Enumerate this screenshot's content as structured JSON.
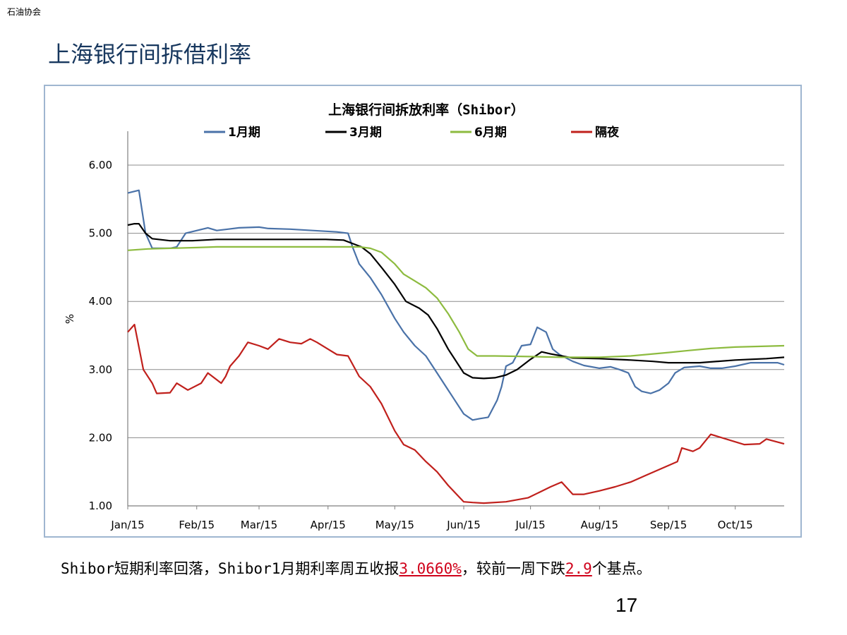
{
  "header": {
    "org": "石油协会",
    "title": "上海银行间拆借利率"
  },
  "caption": {
    "text1": "Shibor短期利率回落，Shibor1月期利率周五收报",
    "value1": "3.0660%",
    "text2": "，较前一周下跌",
    "value2": "2.9",
    "text3": "个基点。"
  },
  "page_number": "17",
  "chart_data": {
    "type": "line",
    "title": "上海银行间拆放利率（Shibor）",
    "ylabel": "%",
    "xlabel": "",
    "ylim": [
      1.0,
      6.0
    ],
    "yticks": [
      "1.00",
      "2.00",
      "3.00",
      "4.00",
      "5.00",
      "6.00"
    ],
    "xticks": [
      "Jan/15",
      "Feb/15",
      "Mar/15",
      "Apr/15",
      "May/15",
      "Jun/15",
      "Jul/15",
      "Aug/15",
      "Sep/15",
      "Oct/15"
    ],
    "grid": true,
    "legend": "top",
    "series": [
      {
        "name": "1月期",
        "color": "#4a72a8",
        "x": [
          "2015-01-01",
          "2015-01-06",
          "2015-01-09",
          "2015-01-12",
          "2015-01-20",
          "2015-01-23",
          "2015-01-27",
          "2015-02-06",
          "2015-02-10",
          "2015-02-15",
          "2015-02-20",
          "2015-03-01",
          "2015-03-05",
          "2015-03-15",
          "2015-03-25",
          "2015-04-05",
          "2015-04-10",
          "2015-04-12",
          "2015-04-15",
          "2015-04-20",
          "2015-04-25",
          "2015-05-01",
          "2015-05-05",
          "2015-05-10",
          "2015-05-15",
          "2015-05-20",
          "2015-05-24",
          "2015-05-28",
          "2015-06-01",
          "2015-06-05",
          "2015-06-08",
          "2015-06-12",
          "2015-06-16",
          "2015-06-18",
          "2015-06-20",
          "2015-06-23",
          "2015-06-27",
          "2015-07-01",
          "2015-07-04",
          "2015-07-08",
          "2015-07-11",
          "2015-07-14",
          "2015-07-20",
          "2015-07-25",
          "2015-08-01",
          "2015-08-06",
          "2015-08-10",
          "2015-08-14",
          "2015-08-17",
          "2015-08-20",
          "2015-08-24",
          "2015-08-28",
          "2015-09-01",
          "2015-09-04",
          "2015-09-08",
          "2015-09-15",
          "2015-09-20",
          "2015-09-25",
          "2015-10-01",
          "2015-10-08",
          "2015-10-15",
          "2015-10-20",
          "2015-10-23"
        ],
        "y": [
          5.59,
          5.63,
          5.0,
          4.78,
          4.78,
          4.8,
          5.0,
          5.08,
          5.04,
          5.06,
          5.08,
          5.09,
          5.07,
          5.06,
          5.04,
          5.02,
          5.0,
          4.8,
          4.55,
          4.35,
          4.1,
          3.75,
          3.55,
          3.35,
          3.2,
          2.95,
          2.75,
          2.55,
          2.35,
          2.26,
          2.28,
          2.3,
          2.55,
          2.75,
          3.05,
          3.1,
          3.35,
          3.37,
          3.62,
          3.55,
          3.3,
          3.22,
          3.12,
          3.06,
          3.02,
          3.04,
          3.0,
          2.95,
          2.75,
          2.68,
          2.65,
          2.7,
          2.8,
          2.95,
          3.03,
          3.05,
          3.02,
          3.02,
          3.05,
          3.1,
          3.1,
          3.1,
          3.07
        ]
      },
      {
        "name": "3月期",
        "color": "#000000",
        "x": [
          "2015-01-01",
          "2015-01-04",
          "2015-01-06",
          "2015-01-09",
          "2015-01-12",
          "2015-01-20",
          "2015-01-30",
          "2015-02-10",
          "2015-02-20",
          "2015-03-01",
          "2015-03-15",
          "2015-03-31",
          "2015-04-08",
          "2015-04-12",
          "2015-04-16",
          "2015-04-20",
          "2015-04-25",
          "2015-05-01",
          "2015-05-06",
          "2015-05-12",
          "2015-05-16",
          "2015-05-20",
          "2015-05-25",
          "2015-06-01",
          "2015-06-05",
          "2015-06-10",
          "2015-06-15",
          "2015-06-20",
          "2015-06-25",
          "2015-07-01",
          "2015-07-06",
          "2015-07-10",
          "2015-07-15",
          "2015-07-20",
          "2015-08-01",
          "2015-08-15",
          "2015-08-25",
          "2015-09-01",
          "2015-09-15",
          "2015-10-01",
          "2015-10-15",
          "2015-10-23"
        ],
        "y": [
          5.12,
          5.14,
          5.14,
          5.0,
          4.92,
          4.89,
          4.89,
          4.91,
          4.91,
          4.91,
          4.91,
          4.91,
          4.9,
          4.85,
          4.8,
          4.7,
          4.5,
          4.25,
          4.0,
          3.9,
          3.8,
          3.6,
          3.3,
          2.95,
          2.88,
          2.87,
          2.88,
          2.92,
          3.0,
          3.15,
          3.26,
          3.23,
          3.2,
          3.17,
          3.16,
          3.14,
          3.12,
          3.1,
          3.1,
          3.14,
          3.16,
          3.18
        ]
      },
      {
        "name": "6月期",
        "color": "#8dbb3f",
        "x": [
          "2015-01-01",
          "2015-01-10",
          "2015-01-20",
          "2015-02-01",
          "2015-02-10",
          "2015-03-01",
          "2015-03-31",
          "2015-04-15",
          "2015-04-20",
          "2015-04-25",
          "2015-05-01",
          "2015-05-05",
          "2015-05-10",
          "2015-05-15",
          "2015-05-20",
          "2015-05-25",
          "2015-05-30",
          "2015-06-03",
          "2015-06-07",
          "2015-06-15",
          "2015-07-01",
          "2015-07-15",
          "2015-08-01",
          "2015-08-15",
          "2015-09-01",
          "2015-09-10",
          "2015-09-20",
          "2015-10-01",
          "2015-10-23"
        ],
        "y": [
          4.75,
          4.77,
          4.78,
          4.79,
          4.8,
          4.8,
          4.8,
          4.8,
          4.78,
          4.72,
          4.55,
          4.4,
          4.3,
          4.2,
          4.05,
          3.82,
          3.55,
          3.3,
          3.2,
          3.2,
          3.19,
          3.18,
          3.18,
          3.2,
          3.25,
          3.28,
          3.31,
          3.33,
          3.35
        ]
      },
      {
        "name": "隔夜",
        "color": "#c0201c",
        "x": [
          "2015-01-01",
          "2015-01-04",
          "2015-01-08",
          "2015-01-12",
          "2015-01-14",
          "2015-01-20",
          "2015-01-23",
          "2015-01-28",
          "2015-02-03",
          "2015-02-06",
          "2015-02-10",
          "2015-02-12",
          "2015-02-14",
          "2015-02-16",
          "2015-02-20",
          "2015-02-24",
          "2015-03-01",
          "2015-03-05",
          "2015-03-10",
          "2015-03-15",
          "2015-03-20",
          "2015-03-24",
          "2015-03-27",
          "2015-04-01",
          "2015-04-05",
          "2015-04-10",
          "2015-04-15",
          "2015-04-20",
          "2015-04-25",
          "2015-05-01",
          "2015-05-05",
          "2015-05-10",
          "2015-05-15",
          "2015-05-20",
          "2015-05-25",
          "2015-06-01",
          "2015-06-05",
          "2015-06-10",
          "2015-06-20",
          "2015-06-30",
          "2015-07-05",
          "2015-07-10",
          "2015-07-15",
          "2015-07-20",
          "2015-07-25",
          "2015-08-01",
          "2015-08-08",
          "2015-08-15",
          "2015-08-22",
          "2015-08-29",
          "2015-09-05",
          "2015-09-07",
          "2015-09-12",
          "2015-09-15",
          "2015-09-20",
          "2015-10-05",
          "2015-10-12",
          "2015-10-15",
          "2015-10-23"
        ],
        "y": [
          3.55,
          3.66,
          3.0,
          2.8,
          2.65,
          2.66,
          2.8,
          2.7,
          2.8,
          2.95,
          2.85,
          2.8,
          2.9,
          3.05,
          3.2,
          3.4,
          3.35,
          3.3,
          3.45,
          3.4,
          3.38,
          3.45,
          3.4,
          3.3,
          3.22,
          3.2,
          2.9,
          2.75,
          2.5,
          2.1,
          1.9,
          1.82,
          1.65,
          1.5,
          1.3,
          1.06,
          1.05,
          1.04,
          1.06,
          1.12,
          1.2,
          1.28,
          1.35,
          1.17,
          1.17,
          1.22,
          1.28,
          1.35,
          1.45,
          1.55,
          1.65,
          1.85,
          1.8,
          1.85,
          2.05,
          1.9,
          1.91,
          1.98,
          1.91
        ]
      }
    ]
  }
}
